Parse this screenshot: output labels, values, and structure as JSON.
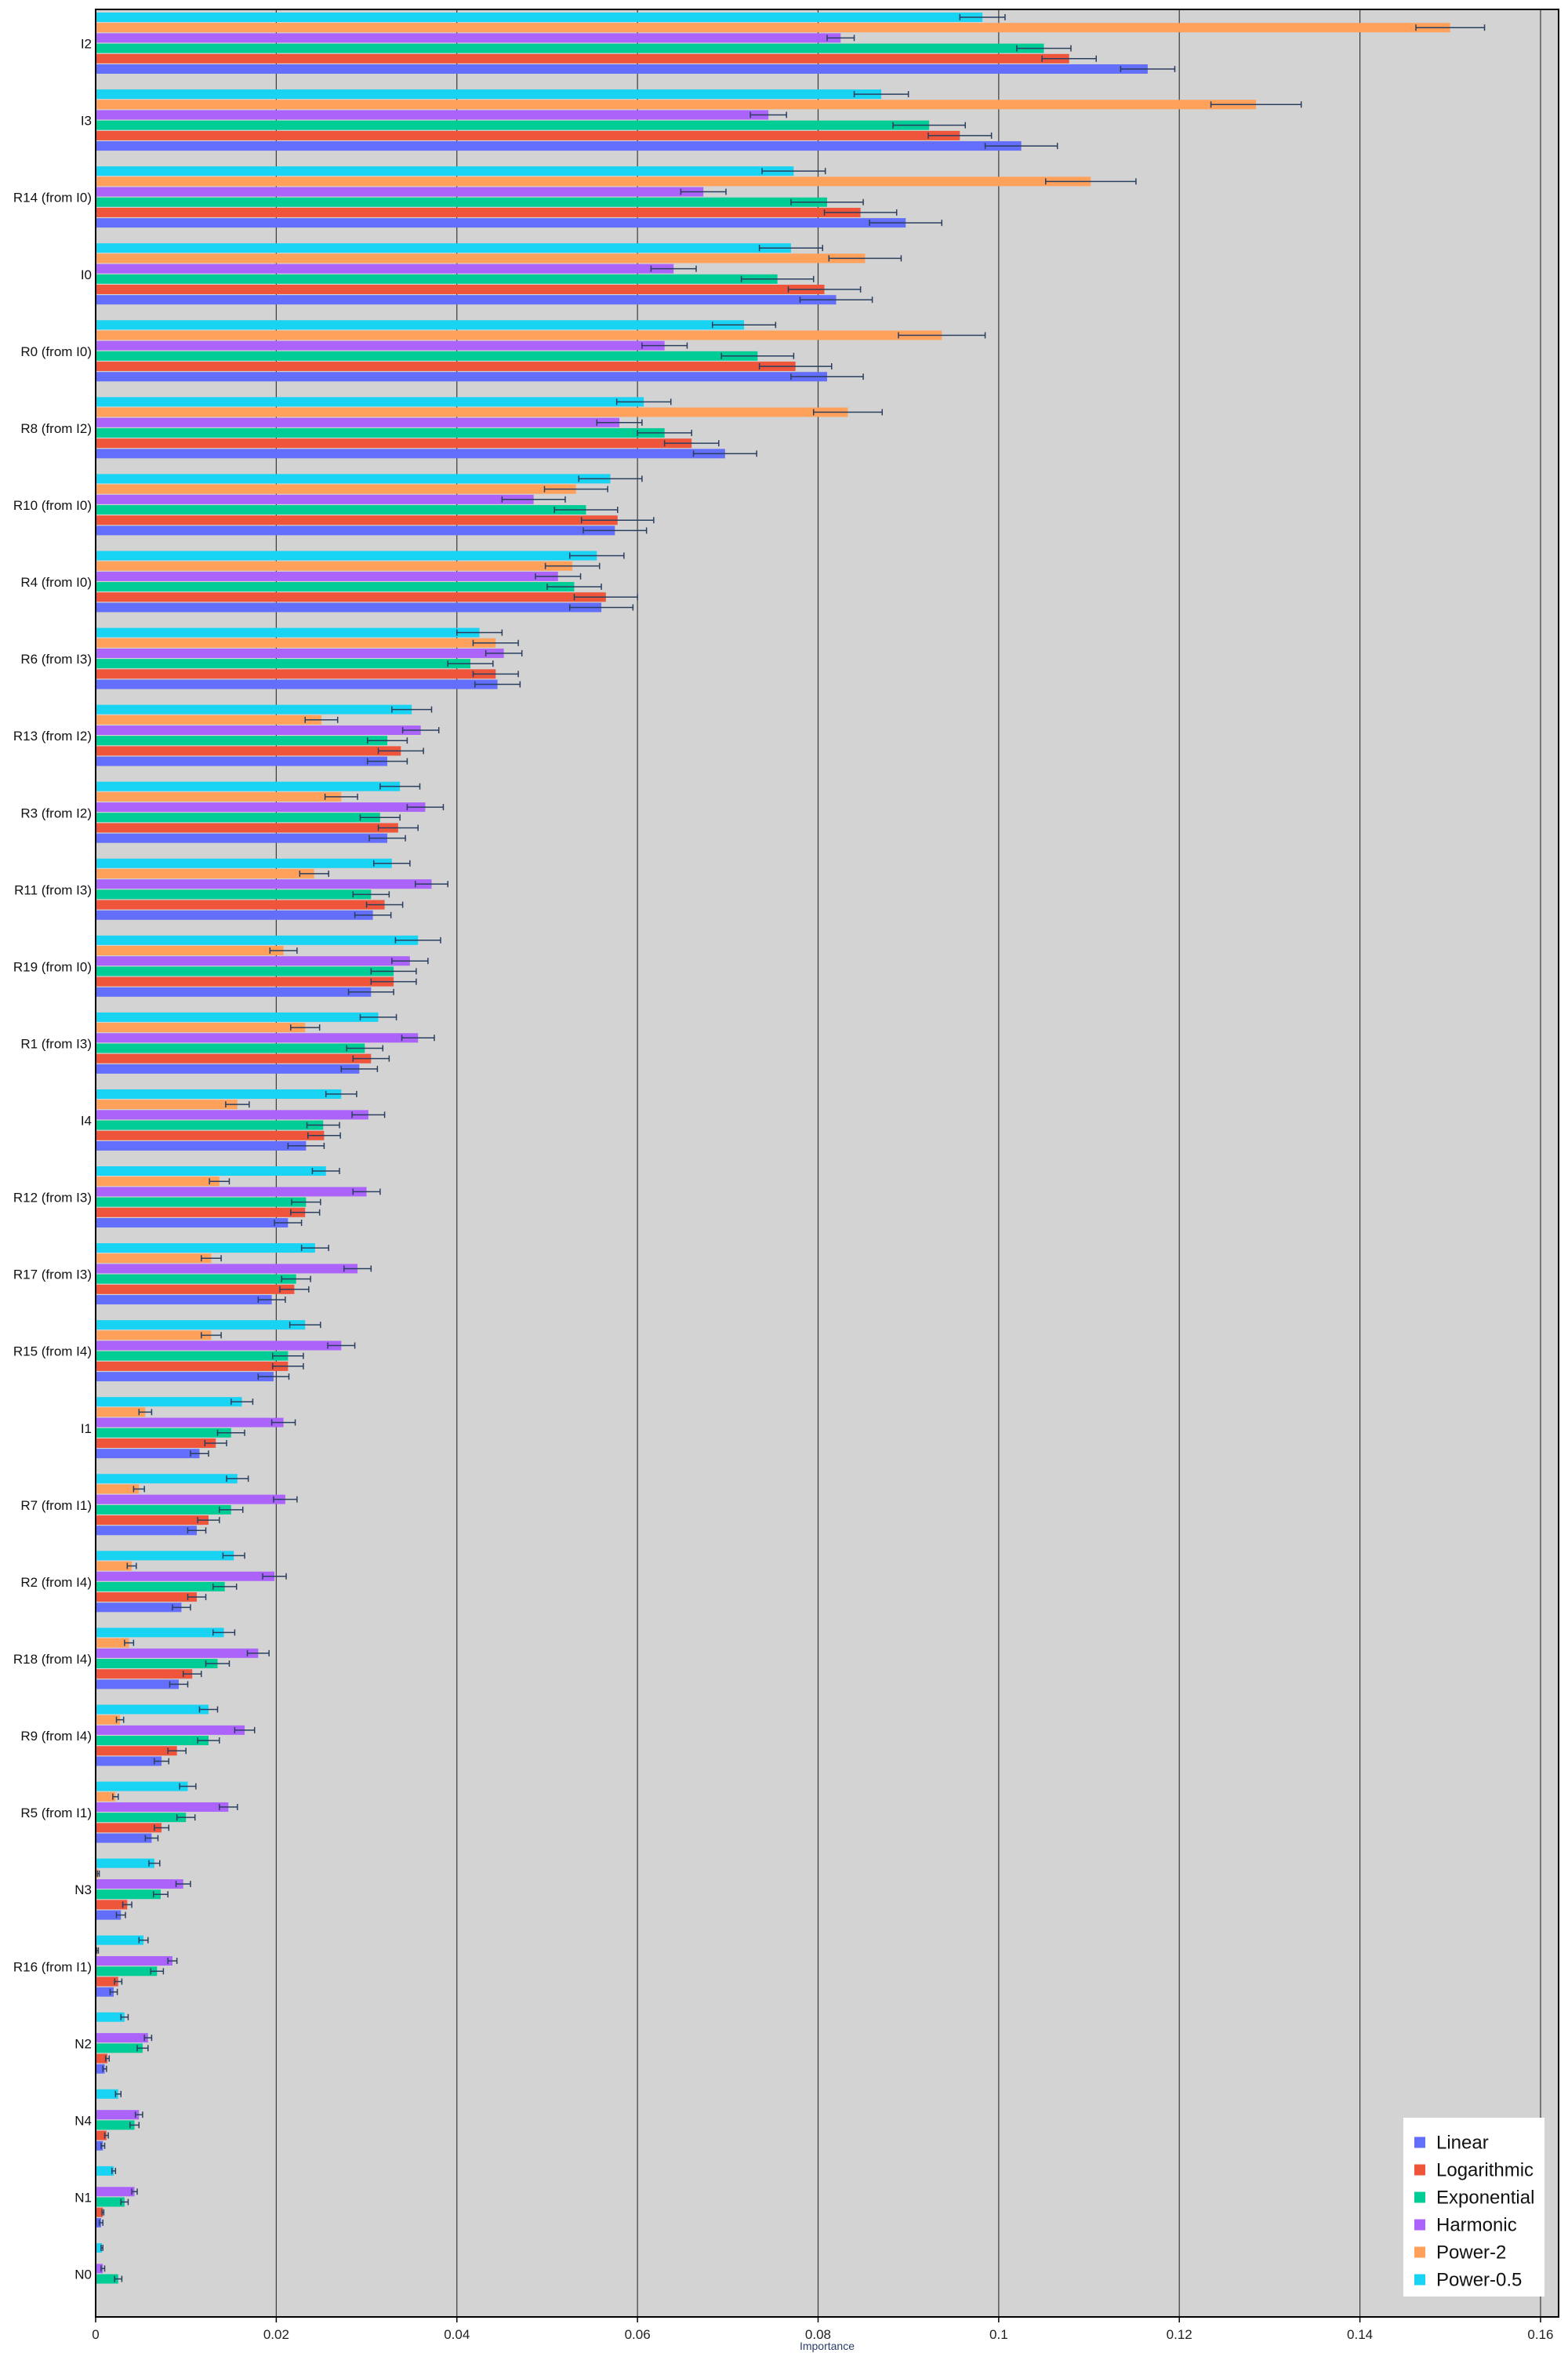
{
  "chart_data": {
    "type": "bar",
    "orientation": "horizontal",
    "xlabel": "Importance",
    "ylabel": "",
    "xlim": [
      0,
      0.162
    ],
    "xticks": [
      0,
      0.02,
      0.04,
      0.06,
      0.08,
      0.1,
      0.12,
      0.14,
      0.16
    ],
    "xtick_labels": [
      "0",
      "0.02",
      "0.04",
      "0.06",
      "0.08",
      "0.1",
      "0.12",
      "0.14",
      "0.16"
    ],
    "grid": "vertical",
    "legend_position": "bottom-right",
    "background": "#d3d3d3",
    "categories": [
      "I2",
      "I3",
      "R14 (from I0)",
      "I0",
      "R0 (from I0)",
      "R8 (from I2)",
      "R10 (from I0)",
      "R4 (from I0)",
      "R6 (from I3)",
      "R13 (from I2)",
      "R3 (from I2)",
      "R11 (from I3)",
      "R19 (from I0)",
      "R1 (from I3)",
      "I4",
      "R12 (from I3)",
      "R17 (from I3)",
      "R15 (from I4)",
      "I1",
      "R7 (from I1)",
      "R2 (from I4)",
      "R18 (from I4)",
      "R9 (from I4)",
      "R5 (from I1)",
      "N3",
      "R16 (from I1)",
      "N2",
      "N4",
      "N1",
      "N0"
    ],
    "series_order_top_to_bottom": [
      "Power-0.5",
      "Power-2",
      "Harmonic",
      "Exponential",
      "Logarithmic",
      "Linear"
    ],
    "series": [
      {
        "name": "Linear",
        "color": "#636efa",
        "values": [
          0.1165,
          0.1025,
          0.0897,
          0.082,
          0.081,
          0.0697,
          0.0575,
          0.056,
          0.0445,
          0.0323,
          0.0323,
          0.0307,
          0.0305,
          0.0292,
          0.0233,
          0.0213,
          0.0195,
          0.0197,
          0.0115,
          0.0112,
          0.0095,
          0.0092,
          0.0073,
          0.0062,
          0.0028,
          0.002,
          0.001,
          0.0008,
          0.0006,
          0.0
        ],
        "errors": [
          0.003,
          0.004,
          0.004,
          0.004,
          0.004,
          0.0035,
          0.0035,
          0.0035,
          0.0025,
          0.0022,
          0.002,
          0.002,
          0.0025,
          0.002,
          0.002,
          0.0015,
          0.0015,
          0.0017,
          0.001,
          0.001,
          0.001,
          0.001,
          0.0008,
          0.0007,
          0.0005,
          0.0004,
          0.0002,
          0.0002,
          0.0002,
          0.0
        ]
      },
      {
        "name": "Logarithmic",
        "color": "#ef553b",
        "values": [
          0.1078,
          0.0957,
          0.0847,
          0.0807,
          0.0775,
          0.066,
          0.0578,
          0.0565,
          0.0443,
          0.0338,
          0.0335,
          0.032,
          0.033,
          0.0305,
          0.0253,
          0.0232,
          0.022,
          0.0213,
          0.0133,
          0.0125,
          0.0112,
          0.0107,
          0.009,
          0.0073,
          0.0035,
          0.0025,
          0.0013,
          0.0012,
          0.0008,
          0.0
        ],
        "errors": [
          0.003,
          0.0035,
          0.004,
          0.004,
          0.004,
          0.003,
          0.004,
          0.0035,
          0.0025,
          0.0025,
          0.0022,
          0.002,
          0.0025,
          0.002,
          0.0018,
          0.0016,
          0.0016,
          0.0017,
          0.0012,
          0.0012,
          0.001,
          0.001,
          0.001,
          0.0008,
          0.0005,
          0.0004,
          0.0002,
          0.0002,
          0.0001,
          0.0
        ]
      },
      {
        "name": "Exponential",
        "color": "#00cc96",
        "values": [
          0.105,
          0.0923,
          0.081,
          0.0755,
          0.0733,
          0.063,
          0.0543,
          0.053,
          0.0415,
          0.0323,
          0.0315,
          0.0305,
          0.033,
          0.0298,
          0.0252,
          0.0233,
          0.0222,
          0.0213,
          0.015,
          0.015,
          0.0143,
          0.0135,
          0.0125,
          0.01,
          0.0072,
          0.0068,
          0.0052,
          0.0043,
          0.0032,
          0.0025
        ],
        "errors": [
          0.003,
          0.004,
          0.004,
          0.004,
          0.004,
          0.003,
          0.0035,
          0.003,
          0.0025,
          0.0022,
          0.0022,
          0.002,
          0.0025,
          0.002,
          0.0018,
          0.0016,
          0.0016,
          0.0017,
          0.0015,
          0.0013,
          0.0013,
          0.0013,
          0.0012,
          0.001,
          0.0008,
          0.0007,
          0.0006,
          0.0005,
          0.0004,
          0.0004
        ]
      },
      {
        "name": "Harmonic",
        "color": "#ab63fa",
        "values": [
          0.0825,
          0.0745,
          0.0673,
          0.064,
          0.063,
          0.058,
          0.0485,
          0.0512,
          0.0452,
          0.036,
          0.0365,
          0.0372,
          0.0348,
          0.0357,
          0.0302,
          0.03,
          0.029,
          0.0272,
          0.0208,
          0.021,
          0.0198,
          0.018,
          0.0165,
          0.0147,
          0.0097,
          0.0085,
          0.0058,
          0.0048,
          0.0043,
          0.0008
        ],
        "errors": [
          0.0015,
          0.002,
          0.0025,
          0.0025,
          0.0025,
          0.0025,
          0.0035,
          0.0025,
          0.002,
          0.002,
          0.002,
          0.0018,
          0.002,
          0.0018,
          0.0018,
          0.0015,
          0.0015,
          0.0015,
          0.0013,
          0.0013,
          0.0013,
          0.0012,
          0.0011,
          0.001,
          0.0008,
          0.0005,
          0.0004,
          0.0004,
          0.0003,
          0.0002
        ]
      },
      {
        "name": "Power-2",
        "color": "#ffa15a",
        "values": [
          0.15,
          0.1285,
          0.1102,
          0.0852,
          0.0937,
          0.0833,
          0.0532,
          0.0528,
          0.0443,
          0.025,
          0.0272,
          0.0242,
          0.0208,
          0.0232,
          0.0157,
          0.0137,
          0.0128,
          0.0128,
          0.0055,
          0.0048,
          0.004,
          0.0037,
          0.0027,
          0.0022,
          0.0003,
          0.0002,
          0.0,
          0.0,
          0.0,
          0.0
        ],
        "errors": [
          0.0038,
          0.005,
          0.005,
          0.004,
          0.0048,
          0.0038,
          0.0035,
          0.003,
          0.0025,
          0.0018,
          0.0018,
          0.0016,
          0.0015,
          0.0016,
          0.0013,
          0.0011,
          0.0011,
          0.0011,
          0.0007,
          0.0006,
          0.0005,
          0.0005,
          0.0004,
          0.0003,
          0.0001,
          0.0001,
          0.0,
          0.0,
          0.0,
          0.0
        ]
      },
      {
        "name": "Power-0.5",
        "color": "#19d3f3",
        "values": [
          0.0982,
          0.087,
          0.0773,
          0.077,
          0.0718,
          0.0607,
          0.057,
          0.0555,
          0.0425,
          0.035,
          0.0337,
          0.0328,
          0.0357,
          0.0313,
          0.0272,
          0.0255,
          0.0243,
          0.0232,
          0.0162,
          0.0157,
          0.0153,
          0.0142,
          0.0125,
          0.0102,
          0.0065,
          0.0053,
          0.0032,
          0.0025,
          0.002,
          0.0007
        ],
        "errors": [
          0.0025,
          0.003,
          0.0035,
          0.0035,
          0.0035,
          0.003,
          0.0035,
          0.003,
          0.0025,
          0.0022,
          0.0022,
          0.002,
          0.0025,
          0.002,
          0.0017,
          0.0015,
          0.0015,
          0.0017,
          0.0012,
          0.0012,
          0.0012,
          0.0012,
          0.001,
          0.0009,
          0.0006,
          0.0005,
          0.0004,
          0.0003,
          0.0002,
          0.0001
        ]
      }
    ]
  }
}
